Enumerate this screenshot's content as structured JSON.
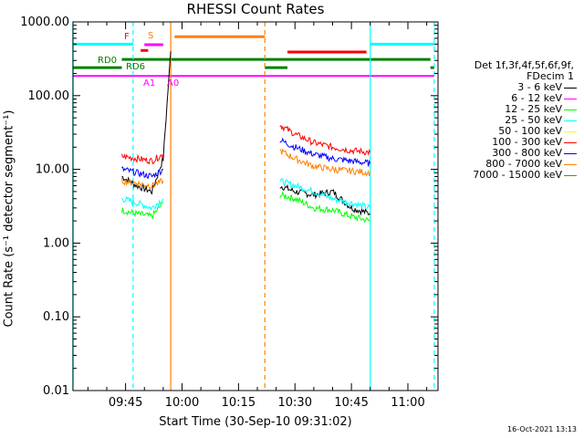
{
  "chart_data": {
    "type": "line",
    "title": "RHESSI Count Rates",
    "xlabel": "Start Time (30-Sep-10 09:31:02)",
    "ylabel": "Count Rate (s⁻¹ detector segment⁻¹)",
    "yscale": "log",
    "ylim": [
      0.01,
      1000
    ],
    "xlim": [
      "09:31:02",
      "11:08"
    ],
    "xticks": [
      "09:45",
      "10:00",
      "10:15",
      "10:30",
      "10:45",
      "11:00"
    ],
    "yticks": [
      "0.01",
      "0.10",
      "1.00",
      "10.00",
      "100.00",
      "1000.00"
    ],
    "legend_header": [
      "Det 1f,3f,4f,5f,6f,9f,",
      "FDecim 1"
    ],
    "legend_position": "right",
    "footer": "16-Oct-2021 13:13",
    "series": [
      {
        "name": "3 - 6 keV",
        "color": "#000000",
        "segments": [
          {
            "x": [
              "09:44",
              "09:48",
              "09:52",
              "09:55",
              "09:57"
            ],
            "values": [
              8,
              6,
              5,
              14,
              400
            ]
          },
          {
            "x": [
              "10:26",
              "10:30",
              "10:35",
              "10:40",
              "10:45",
              "10:50"
            ],
            "values": [
              6,
              5,
              4.5,
              5,
              3,
              2.5
            ]
          }
        ]
      },
      {
        "name": "6 - 12 keV",
        "color": "#ff00ff",
        "segments": []
      },
      {
        "name": "12 - 25 keV",
        "color": "#00ff00",
        "segments": [
          {
            "x": [
              "09:44",
              "09:48",
              "09:52",
              "09:55"
            ],
            "values": [
              2.8,
              2.5,
              2.3,
              3.5
            ]
          },
          {
            "x": [
              "10:26",
              "10:30",
              "10:35",
              "10:40",
              "10:45",
              "10:50"
            ],
            "values": [
              4.5,
              4,
              3,
              2.8,
              2.3,
              2
            ]
          }
        ]
      },
      {
        "name": "25 - 50 keV",
        "color": "#00ffff",
        "segments": [
          {
            "x": [
              "09:44",
              "09:48",
              "09:52",
              "09:55"
            ],
            "values": [
              4,
              3.5,
              3,
              4
            ]
          },
          {
            "x": [
              "10:26",
              "10:30",
              "10:35",
              "10:40",
              "10:45",
              "10:50"
            ],
            "values": [
              7,
              6,
              5,
              4,
              3.5,
              3
            ]
          }
        ]
      },
      {
        "name": "50 - 100 keV",
        "color": "#ffff00",
        "segments": []
      },
      {
        "name": "100 - 300 keV",
        "color": "#ff0000",
        "segments": [
          {
            "x": [
              "09:44",
              "09:48",
              "09:52",
              "09:55"
            ],
            "values": [
              15,
              14,
              13,
              16
            ]
          },
          {
            "x": [
              "10:26",
              "10:30",
              "10:35",
              "10:40",
              "10:45",
              "10:50"
            ],
            "values": [
              40,
              30,
              23,
              20,
              18,
              17
            ]
          }
        ]
      },
      {
        "name": "300 - 800 keV",
        "color": "#0000ff",
        "segments": [
          {
            "x": [
              "09:44",
              "09:48",
              "09:52",
              "09:55"
            ],
            "values": [
              10,
              9,
              8,
              10
            ]
          },
          {
            "x": [
              "10:26",
              "10:30",
              "10:35",
              "10:40",
              "10:45",
              "10:50"
            ],
            "values": [
              25,
              20,
              16,
              14,
              13,
              12
            ]
          }
        ]
      },
      {
        "name": "800 - 7000 keV",
        "color": "#ff8000",
        "segments": [
          {
            "x": [
              "09:44",
              "09:48",
              "09:52",
              "09:55"
            ],
            "values": [
              7,
              6.5,
              6,
              7
            ]
          },
          {
            "x": [
              "10:26",
              "10:30",
              "10:35",
              "10:40",
              "10:45",
              "10:50"
            ],
            "values": [
              18,
              14,
              11,
              10,
              9.5,
              9
            ]
          }
        ]
      },
      {
        "name": "7000 - 15000 keV",
        "color": "#808000",
        "segments": []
      }
    ],
    "annotations": {
      "labels": [
        {
          "text": "RD0",
          "color": "#008000"
        },
        {
          "text": "RD6",
          "color": "#008000"
        },
        {
          "text": "F",
          "color": "#ff0000"
        },
        {
          "text": "S",
          "color": "#ff8000"
        },
        {
          "text": "A1",
          "color": "#ff00ff"
        },
        {
          "text": "A0",
          "color": "#ff00ff"
        }
      ]
    }
  }
}
